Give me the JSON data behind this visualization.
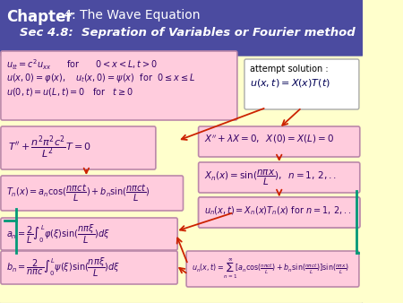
{
  "bg_color": "#FFFFCC",
  "header_bg": "#4B4BA0",
  "header_text_color": "#FFFFFF",
  "box_fill": "#FFCCDD",
  "box_edge": "#BB88AA",
  "attempt_fill": "#FFFFFF",
  "attempt_edge": "#999999",
  "arrow_color": "#CC2200",
  "teal_color": "#009977",
  "dark_text": "#330066",
  "title_bold": "Chapter",
  "title_rest": " 4: The Wave Equation",
  "sec_text": "Sec 4.8:  Sepration of Variables or Fourier method"
}
